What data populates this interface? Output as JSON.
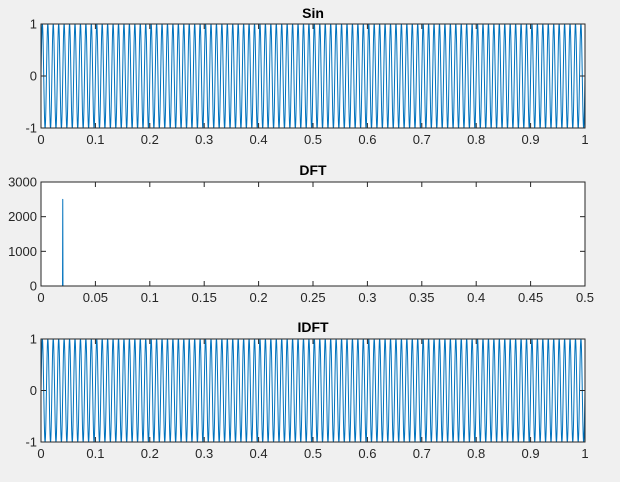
{
  "figure": {
    "background": "#f0f0f0",
    "axes_background": "#ffffff",
    "axis_color": "#262626",
    "line_color": "#0072bd"
  },
  "chart_data": [
    {
      "type": "line",
      "title": "Sin",
      "xlabel": "",
      "ylabel": "",
      "xlim": [
        0,
        1
      ],
      "ylim": [
        -1,
        1
      ],
      "x_ticks": [
        0,
        0.1,
        0.2,
        0.3,
        0.4,
        0.5,
        0.6,
        0.7,
        0.8,
        0.9,
        1
      ],
      "x_tick_labels": [
        "0",
        "0.1",
        "0.2",
        "0.3",
        "0.4",
        "0.5",
        "0.6",
        "0.7",
        "0.8",
        "0.9",
        "1"
      ],
      "y_ticks": [
        -1,
        0,
        1
      ],
      "y_tick_labels": [
        "-1",
        "0",
        "1"
      ],
      "grid": false,
      "series": [
        {
          "function": "sin",
          "frequency": 100,
          "amplitude": 1,
          "x_start": 0,
          "x_end": 1,
          "samples": 5000,
          "color": "#0072bd"
        }
      ]
    },
    {
      "type": "line",
      "title": "DFT",
      "xlabel": "",
      "ylabel": "",
      "xlim": [
        0,
        0.5
      ],
      "ylim": [
        0,
        3000
      ],
      "x_ticks": [
        0,
        0.05,
        0.1,
        0.15,
        0.2,
        0.25,
        0.3,
        0.35,
        0.4,
        0.45,
        0.5
      ],
      "x_tick_labels": [
        "0",
        "0.05",
        "0.1",
        "0.15",
        "0.2",
        "0.25",
        "0.3",
        "0.35",
        "0.4",
        "0.45",
        "0.5"
      ],
      "y_ticks": [
        0,
        1000,
        2000,
        3000
      ],
      "y_tick_labels": [
        "0",
        "1000",
        "2000",
        "3000"
      ],
      "grid": false,
      "series": [
        {
          "x": [
            0,
            0.0198,
            0.02,
            0.0202,
            0.5
          ],
          "y": [
            0,
            0,
            2500,
            0,
            0
          ],
          "color": "#0072bd"
        }
      ]
    },
    {
      "type": "line",
      "title": "IDFT",
      "xlabel": "",
      "ylabel": "",
      "xlim": [
        0,
        1
      ],
      "ylim": [
        -1,
        1
      ],
      "x_ticks": [
        0,
        0.1,
        0.2,
        0.3,
        0.4,
        0.5,
        0.6,
        0.7,
        0.8,
        0.9,
        1
      ],
      "x_tick_labels": [
        "0",
        "0.1",
        "0.2",
        "0.3",
        "0.4",
        "0.5",
        "0.6",
        "0.7",
        "0.8",
        "0.9",
        "1"
      ],
      "y_ticks": [
        -1,
        0,
        1
      ],
      "y_tick_labels": [
        "-1",
        "0",
        "1"
      ],
      "grid": false,
      "series": [
        {
          "function": "sin",
          "frequency": 100,
          "amplitude": 1,
          "x_start": 0,
          "x_end": 1,
          "samples": 5000,
          "color": "#0072bd"
        }
      ]
    }
  ]
}
